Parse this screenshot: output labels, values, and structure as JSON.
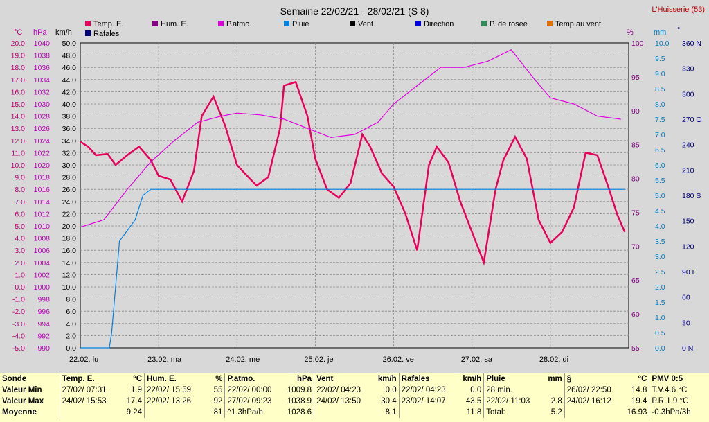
{
  "title": "Semaine 22/02/21 - 28/02/21 (S 8)",
  "station": "L'Huisserie (53)",
  "legend": [
    {
      "label": "Temp. E.",
      "color": "#e8005a"
    },
    {
      "label": "Hum. E.",
      "color": "#800080"
    },
    {
      "label": "P.atmo.",
      "color": "#e000e0"
    },
    {
      "label": "Pluie",
      "color": "#0080e0"
    },
    {
      "label": "Vent",
      "color": "#000000"
    },
    {
      "label": "Direction",
      "color": "#0000e0"
    },
    {
      "label": "P. de rosée",
      "color": "#2e8b57"
    },
    {
      "label": "Temp au vent",
      "color": "#e07000"
    },
    {
      "label": "Rafales",
      "color": "#000080"
    }
  ],
  "axes": {
    "temp_unit": "°C",
    "press_unit": "hPa",
    "wind_unit": "km/h",
    "hum_unit": "%",
    "rain_unit": "mm",
    "dir_unit": "°",
    "temp_ticks": [
      "20.0",
      "19.0",
      "18.0",
      "17.0",
      "16.0",
      "15.0",
      "14.0",
      "13.0",
      "12.0",
      "11.0",
      "10.0",
      "9.0",
      "8.0",
      "7.0",
      "6.0",
      "5.0",
      "4.0",
      "3.0",
      "2.0",
      "1.0",
      "0.0",
      "-1.0",
      "-2.0",
      "-3.0",
      "-4.0",
      "-5.0"
    ],
    "press_ticks": [
      "1040",
      "1038",
      "1036",
      "1034",
      "1032",
      "1030",
      "1028",
      "1026",
      "1024",
      "1022",
      "1020",
      "1018",
      "1016",
      "1014",
      "1012",
      "1010",
      "1008",
      "1006",
      "1004",
      "1002",
      "1000",
      "998",
      "996",
      "994",
      "992",
      "990"
    ],
    "wind_ticks": [
      "50.0",
      "48.0",
      "46.0",
      "44.0",
      "42.0",
      "40.0",
      "38.0",
      "36.0",
      "34.0",
      "32.0",
      "30.0",
      "28.0",
      "26.0",
      "24.0",
      "22.0",
      "20.0",
      "18.0",
      "16.0",
      "14.0",
      "12.0",
      "10.0",
      "8.0",
      "6.0",
      "4.0",
      "2.0",
      "0.0"
    ],
    "hum_ticks": [
      "100",
      "95",
      "90",
      "85",
      "80",
      "75",
      "70",
      "65",
      "60",
      "55"
    ],
    "rain_ticks": [
      "10.0",
      "9.5",
      "9.0",
      "8.5",
      "8.0",
      "7.5",
      "7.0",
      "6.5",
      "6.0",
      "5.5",
      "5.0",
      "4.5",
      "4.0",
      "3.5",
      "3.0",
      "2.5",
      "2.0",
      "1.5",
      "1.0",
      "0.5",
      "0.0"
    ],
    "dir_ticks": [
      "360 N",
      "330",
      "300",
      "270 O",
      "240",
      "210",
      "180 S",
      "150",
      "120",
      "90 E",
      "60",
      "30",
      "0 N"
    ],
    "day_labels": [
      "22.02. lu",
      "23.02. ma",
      "24.02. me",
      "25.02. je",
      "26.02. ve",
      "27.02. sa",
      "28.02. di"
    ]
  },
  "chart_data": {
    "type": "line",
    "x_label": "day index",
    "x_range": [
      0,
      7
    ],
    "series": [
      {
        "name": "Temp. E.",
        "color": "#e8005a",
        "x": [
          0,
          0.1,
          0.2,
          0.35,
          0.45,
          0.6,
          0.75,
          0.9,
          1.0,
          1.15,
          1.3,
          1.45,
          1.55,
          1.7,
          1.85,
          2.0,
          2.1,
          2.25,
          2.4,
          2.55,
          2.6,
          2.75,
          2.9,
          3.0,
          3.15,
          3.3,
          3.45,
          3.6,
          3.7,
          3.85,
          4.0,
          4.15,
          4.3,
          4.45,
          4.55,
          4.7,
          4.85,
          5.0,
          5.15,
          5.3,
          5.4,
          5.55,
          5.7,
          5.85,
          6.0,
          6.15,
          6.3,
          6.45,
          6.6,
          6.75,
          6.85,
          6.95
        ],
        "y": [
          11.9,
          11.5,
          10.8,
          10.9,
          10.0,
          10.8,
          11.5,
          10.4,
          9.1,
          8.8,
          7.0,
          9.5,
          14.0,
          15.6,
          13.2,
          10.0,
          9.3,
          8.3,
          9.0,
          13.0,
          16.5,
          16.8,
          14.0,
          10.5,
          8.0,
          7.3,
          8.5,
          12.5,
          11.5,
          9.3,
          8.2,
          6.0,
          3.0,
          10.0,
          11.5,
          10.2,
          7.0,
          4.5,
          2.0,
          8.0,
          10.4,
          12.3,
          10.5,
          5.5,
          3.6,
          4.5,
          6.5,
          11.0,
          10.8,
          8.0,
          6.0,
          4.5
        ]
      },
      {
        "name": "P.atmo.",
        "color": "#e000e0",
        "x": [
          0,
          0.3,
          0.6,
          0.9,
          1.2,
          1.5,
          1.8,
          2.0,
          2.3,
          2.6,
          2.9,
          3.2,
          3.5,
          3.8,
          4.0,
          4.3,
          4.6,
          4.9,
          5.2,
          5.5,
          5.8,
          6.0,
          6.3,
          6.6,
          6.9
        ],
        "y": [
          1009.8,
          1011,
          1016,
          1020.5,
          1024,
          1027,
          1028,
          1028.5,
          1028.2,
          1027.5,
          1026,
          1024.5,
          1025,
          1027,
          1030,
          1033,
          1036,
          1036,
          1037,
          1038.9,
          1034,
          1031,
          1030,
          1028,
          1027.5
        ]
      },
      {
        "name": "Pluie",
        "color": "#0080e0",
        "x": [
          0,
          0.37,
          0.4,
          0.5,
          0.7,
          0.8,
          0.9,
          2.0,
          3.0,
          4.0,
          5.0,
          6.0,
          6.95
        ],
        "y": [
          0,
          0,
          0.5,
          3.5,
          4.2,
          5,
          5.2,
          5.2,
          5.2,
          5.2,
          5.2,
          5.2,
          5.2
        ]
      }
    ]
  },
  "stats": {
    "headers": {
      "row_label": "Sonde",
      "temp": "Temp. E.",
      "temp_u": "°C",
      "hum": "Hum. E.",
      "hum_u": "%",
      "press": "P.atmo.",
      "press_u": "hPa",
      "wind": "Vent",
      "wind_u": "km/h",
      "gust": "Rafales",
      "gust_u": "km/h",
      "rain": "Pluie",
      "rain_u": "mm",
      "s": "§",
      "s_u": "°C",
      "pmv": "PMV 0:5"
    },
    "rows": [
      {
        "label": "Valeur Min",
        "temp_d": "27/02/ 07:31",
        "temp_v": "1.9",
        "hum_d": "22/02/ 15:59",
        "hum_v": "55",
        "press_d": "22/02/ 00:00",
        "press_v": "1009.8",
        "wind_d": "22/02/ 04:23",
        "wind_v": "0.0",
        "gust_d": "22/02/ 04:23",
        "gust_v": "0.0",
        "rain_d": "28 min.",
        "rain_v": "",
        "s_d": "26/02/ 22:50",
        "s_v": "14.8",
        "pmv": "T.V.4.6 °C"
      },
      {
        "label": "Valeur Max",
        "temp_d": "24/02/ 15:53",
        "temp_v": "17.4",
        "hum_d": "22/02/ 13:26",
        "hum_v": "92",
        "press_d": "27/02/ 09:23",
        "press_v": "1038.9",
        "wind_d": "24/02/ 13:50",
        "wind_v": "30.4",
        "gust_d": "23/02/ 14:07",
        "gust_v": "43.5",
        "rain_d": "22/02/ 11:03",
        "rain_v": "2.8",
        "s_d": "24/02/ 16:12",
        "s_v": "19.4",
        "pmv": "P.R.1.9 °C"
      },
      {
        "label": "Moyenne",
        "temp_d": "",
        "temp_v": "9.24",
        "hum_d": "",
        "hum_v": "81",
        "press_d": "^1.3hPa/h",
        "press_v": "1028.6",
        "wind_d": "",
        "wind_v": "8.1",
        "gust_d": "",
        "gust_v": "11.8",
        "rain_d": "Total:",
        "rain_v": "5.2",
        "s_d": "",
        "s_v": "16.93",
        "pmv": "-0.3hPa/3h"
      }
    ]
  }
}
